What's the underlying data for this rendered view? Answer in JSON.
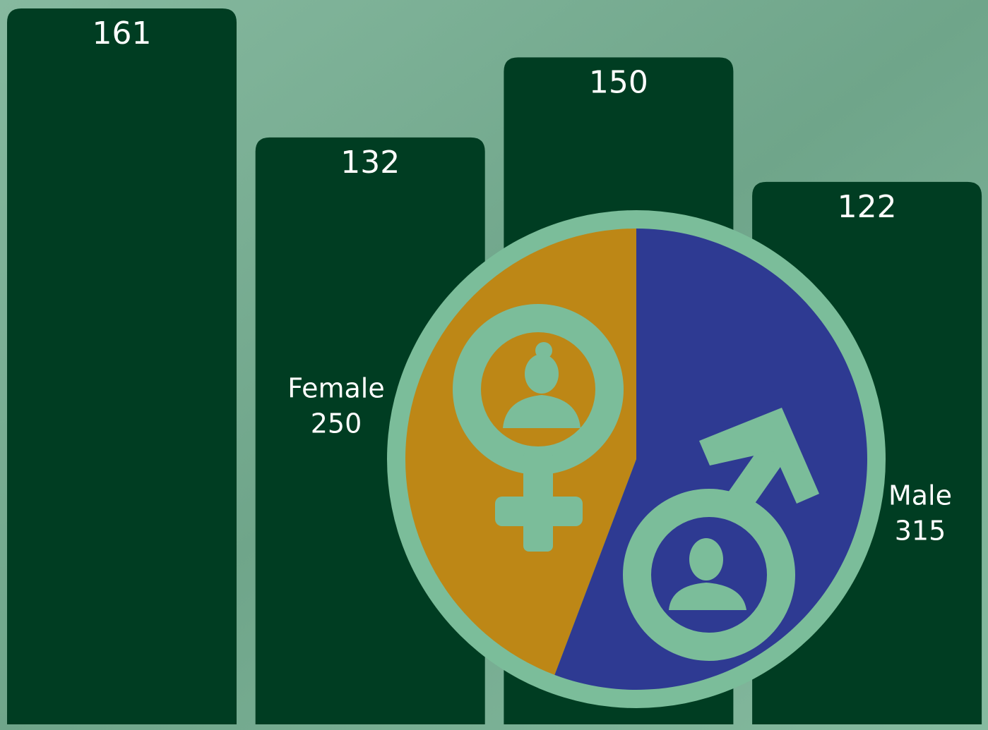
{
  "chart_data": [
    {
      "type": "bar",
      "categories": [
        null,
        null,
        null,
        null
      ],
      "values": [
        161,
        132,
        150,
        122
      ],
      "color": "#003d22"
    },
    {
      "type": "pie",
      "categories": [
        "Female",
        "Male"
      ],
      "values": [
        250,
        315
      ],
      "colors": [
        "#bd8716",
        "#2e3a92"
      ]
    }
  ]
}
